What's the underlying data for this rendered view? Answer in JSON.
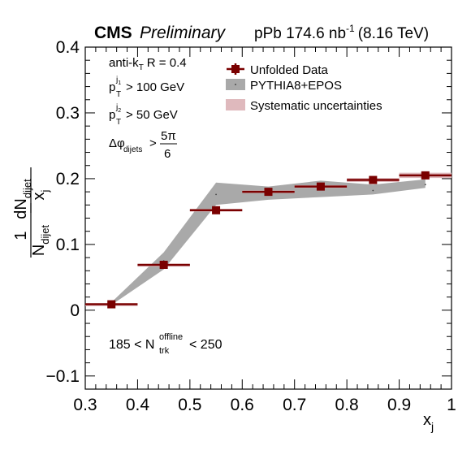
{
  "header": {
    "experiment": "CMS",
    "status": "Preliminary",
    "dataset_prefix": "pPb 174.6 nb",
    "dataset_exp": "-1",
    "dataset_suffix": "(8.16 TeV)"
  },
  "cuts": {
    "algo_prefix": "anti-k",
    "algo_sub": "T",
    "algo_suffix": "R = 0.4",
    "pt1_main": "p",
    "pt1_sup": "j",
    "pt1_supsub": "1",
    "pt1_sub": "T",
    "pt1_rest": "> 100 GeV",
    "pt2_main": "p",
    "pt2_sup": "j",
    "pt2_supsub": "2",
    "pt2_sub": "T",
    "pt2_rest": "> 50 GeV",
    "dphi_main": "Δφ",
    "dphi_sub": "dijets",
    "dphi_gt": ">",
    "dphi_num": "5π",
    "dphi_den": "6",
    "mult_prefix": "185 < N",
    "mult_sup": "offline",
    "mult_sub": "trk",
    "mult_suffix": "< 250"
  },
  "legend": {
    "data": "Unfolded Data",
    "mc": "PYTHIA8+EPOS",
    "syst": "Systematic uncertainties"
  },
  "axes": {
    "x_main": "x",
    "x_sub": "j",
    "y_one": "1",
    "y_N": "N",
    "y_N_sub": "dijet",
    "y_dN": "dN",
    "y_dN_sub": "dijet",
    "y_den": "x",
    "y_den_sub": "j"
  },
  "colors": {
    "data": "#7a0000",
    "mc_band": "#a9a9a9",
    "syst": "#dfb9bd"
  },
  "chart_data": {
    "type": "scatter",
    "xlim": [
      0.3,
      1.0
    ],
    "ylim": [
      -0.12,
      0.4
    ],
    "x_ticks": [
      "0.3",
      "0.4",
      "0.5",
      "0.6",
      "0.7",
      "0.8",
      "0.9",
      "1"
    ],
    "y_ticks": [
      "−0.1",
      "0",
      "0.1",
      "0.2",
      "0.3",
      "0.4"
    ],
    "x_tick_values": [
      0.3,
      0.4,
      0.5,
      0.6,
      0.7,
      0.8,
      0.9,
      1.0
    ],
    "y_tick_values": [
      -0.1,
      0,
      0.1,
      0.2,
      0.3,
      0.4
    ],
    "legend_position": "top-right",
    "series": [
      {
        "name": "Unfolded Data",
        "x": [
          0.35,
          0.45,
          0.55,
          0.65,
          0.75,
          0.85,
          0.95
        ],
        "xerr": [
          0.05,
          0.05,
          0.05,
          0.05,
          0.05,
          0.05,
          0.05
        ],
        "y": [
          0.009,
          0.069,
          0.152,
          0.18,
          0.188,
          0.198,
          0.205
        ],
        "syst": [
          0.001,
          0.001,
          0.002,
          0.002,
          0.002,
          0.003,
          0.004
        ]
      },
      {
        "name": "PYTHIA8+EPOS",
        "x": [
          0.35,
          0.45,
          0.55,
          0.65,
          0.75,
          0.85,
          0.95
        ],
        "y_low": [
          0.008,
          0.062,
          0.16,
          0.168,
          0.172,
          0.176,
          0.186
        ],
        "y_high": [
          0.012,
          0.088,
          0.194,
          0.188,
          0.197,
          0.191,
          0.199
        ],
        "y": [
          0.01,
          0.075,
          0.176,
          0.178,
          0.184,
          0.182,
          0.191
        ]
      }
    ]
  }
}
